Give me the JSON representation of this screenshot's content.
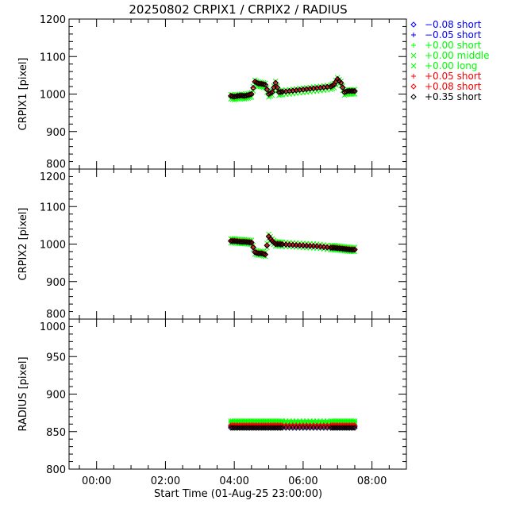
{
  "chart_data": {
    "type": "scatter",
    "title": "20250802 CRPIX1 / CRPIX2 / RADIUS",
    "xlabel": "Start Time (01-Aug-25 23:00:00)",
    "xlim": [
      -0.8,
      9.0
    ],
    "x_ticks": [
      0,
      2,
      4,
      6,
      8
    ],
    "x_tick_labels": [
      "00:00",
      "02:00",
      "04:00",
      "06:00",
      "08:00"
    ],
    "grid": false,
    "legend_placement": "right-top",
    "panels": [
      {
        "key": "crpix1",
        "ylabel": "CRPIX1 [pixel]",
        "ylim": [
          800,
          1200
        ],
        "y_ticks": [
          800,
          900,
          1000,
          1100,
          1200
        ],
        "y_tick_labels": [
          "800",
          "900",
          "1000",
          "1100",
          "1200"
        ],
        "minor": 20
      },
      {
        "key": "crpix2",
        "ylabel": "CRPIX2 [pixel]",
        "ylim": [
          800,
          1200
        ],
        "y_ticks": [
          800,
          900,
          1000,
          1100,
          1200
        ],
        "y_tick_labels": [
          "800",
          "900",
          "1000",
          "1100",
          "1200"
        ],
        "minor": 20
      },
      {
        "key": "radius",
        "ylabel": "RADIUS [pixel]",
        "ylim": [
          800,
          1000
        ],
        "y_ticks": [
          800,
          850,
          900,
          950,
          1000
        ],
        "y_tick_labels": [
          "800",
          "850",
          "900",
          "950",
          "1000"
        ],
        "minor": 10
      }
    ],
    "x": [
      3.9,
      4.0,
      4.1,
      4.2,
      4.3,
      4.4,
      4.5,
      4.6,
      4.7,
      4.8,
      4.9,
      5.0,
      5.1,
      5.2,
      5.3,
      5.4,
      5.6,
      5.8,
      6.0,
      6.2,
      6.4,
      6.6,
      6.8,
      6.9,
      7.0,
      7.1,
      7.2,
      7.3,
      7.4,
      7.5
    ],
    "crpix1_base": [
      995,
      993,
      995,
      996,
      995,
      997,
      1000,
      1033,
      1028,
      1027,
      1025,
      1000,
      1005,
      1030,
      1005,
      1006,
      1008,
      1010,
      1012,
      1014,
      1016,
      1018,
      1020,
      1025,
      1040,
      1030,
      1005,
      1008,
      1008,
      1008
    ],
    "crpix2_base": [
      1008,
      1008,
      1007,
      1006,
      1006,
      1005,
      1004,
      978,
      975,
      975,
      972,
      1020,
      1008,
      1000,
      1000,
      999,
      998,
      997,
      996,
      995,
      994,
      992,
      990,
      990,
      989,
      988,
      987,
      986,
      985,
      985
    ],
    "series": [
      {
        "name": "−0.08 short",
        "marker": "diamond",
        "color": "#0000ff",
        "crpix1_offset": 0,
        "crpix2_offset": 0,
        "radius": 857
      },
      {
        "name": "−0.05 short",
        "marker": "plus",
        "color": "#0000ff",
        "crpix1_offset": 1,
        "crpix2_offset": -1,
        "radius": 858
      },
      {
        "name": "+0.00 short",
        "marker": "plus",
        "color": "#00ff00",
        "crpix1_offset": -4,
        "crpix2_offset": 3,
        "radius": 863
      },
      {
        "name": "+0.00 middle",
        "marker": "x",
        "color": "#00ff00",
        "crpix1_offset": -8,
        "crpix2_offset": 6,
        "radius": 864
      },
      {
        "name": "+0.00 long",
        "marker": "x",
        "color": "#00ff00",
        "crpix1_offset": 4,
        "crpix2_offset": -5,
        "radius": 862
      },
      {
        "name": "+0.05 short",
        "marker": "plus",
        "color": "#ff0000",
        "crpix1_offset": 1,
        "crpix2_offset": 0,
        "radius": 859
      },
      {
        "name": "+0.08 short",
        "marker": "diamond",
        "color": "#ff0000",
        "crpix1_offset": 0,
        "crpix2_offset": 1,
        "radius": 858
      },
      {
        "name": "+0.35 short",
        "marker": "diamond",
        "color": "#000000",
        "crpix1_offset": 0,
        "crpix2_offset": 0,
        "radius": 855
      }
    ]
  }
}
